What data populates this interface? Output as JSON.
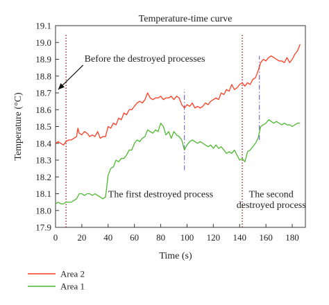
{
  "chart_data": {
    "type": "line",
    "title": "Temperature-time curve",
    "xlabel": "Time (s)",
    "ylabel": "Temperature (°C)",
    "xlim": [
      0,
      190
    ],
    "ylim": [
      17.9,
      19.1
    ],
    "xticks": [
      0,
      20,
      40,
      60,
      80,
      100,
      120,
      140,
      160,
      180
    ],
    "yticks": [
      17.9,
      18.0,
      18.1,
      18.2,
      18.3,
      18.4,
      18.5,
      18.6,
      18.7,
      18.8,
      18.9,
      19.0,
      19.1
    ],
    "xtick_labels": [
      "0",
      "20",
      "40",
      "60",
      "80",
      "100",
      "120",
      "140",
      "160",
      "180"
    ],
    "ytick_labels": [
      "17.9",
      "18.0",
      "18.1",
      "18.2",
      "18.3",
      "18.4",
      "18.5",
      "18.6",
      "18.7",
      "18.8",
      "18.9",
      "19.0",
      "19.1"
    ],
    "grid": false,
    "legend_position": "bottom-left",
    "series": [
      {
        "name": "Area 2",
        "color": "#ff3b1f",
        "x": [
          0,
          2,
          4,
          6,
          8,
          10,
          12,
          14,
          16,
          17,
          18,
          20,
          22,
          24,
          26,
          28,
          30,
          32,
          34,
          36,
          38,
          40,
          42,
          44,
          46,
          48,
          50,
          52,
          54,
          56,
          58,
          60,
          62,
          64,
          66,
          68,
          70,
          72,
          74,
          76,
          78,
          80,
          82,
          84,
          86,
          88,
          90,
          92,
          94,
          96,
          98,
          100,
          102,
          104,
          106,
          108,
          110,
          112,
          114,
          116,
          118,
          120,
          122,
          124,
          126,
          128,
          130,
          132,
          134,
          136,
          138,
          140,
          142,
          144,
          146,
          148,
          150,
          152,
          154,
          156,
          158,
          160,
          162,
          164,
          166,
          168,
          170,
          172,
          174,
          176,
          178,
          180,
          182,
          184,
          186
        ],
        "y": [
          18.4,
          18.41,
          18.4,
          18.39,
          18.41,
          18.42,
          18.42,
          18.43,
          18.44,
          18.49,
          18.46,
          18.45,
          18.47,
          18.46,
          18.44,
          18.45,
          18.44,
          18.47,
          18.43,
          18.44,
          18.44,
          18.5,
          18.49,
          18.52,
          18.51,
          18.55,
          18.54,
          18.58,
          18.57,
          18.6,
          18.6,
          18.62,
          18.64,
          18.65,
          18.64,
          18.66,
          18.7,
          18.67,
          18.66,
          18.67,
          18.67,
          18.68,
          18.66,
          18.67,
          18.67,
          18.68,
          18.66,
          18.68,
          18.67,
          18.63,
          18.61,
          18.63,
          18.62,
          18.64,
          18.61,
          18.62,
          18.61,
          18.62,
          18.64,
          18.63,
          18.65,
          18.66,
          18.67,
          18.66,
          18.7,
          18.69,
          18.72,
          18.71,
          18.75,
          18.72,
          18.73,
          18.75,
          18.76,
          18.74,
          18.76,
          18.75,
          18.78,
          18.79,
          18.83,
          18.88,
          18.9,
          18.89,
          18.91,
          18.92,
          18.91,
          18.9,
          18.89,
          18.89,
          18.88,
          18.91,
          18.88,
          18.9,
          18.93,
          18.95,
          18.99
        ]
      },
      {
        "name": "Area 1",
        "color": "#4db82f",
        "x": [
          0,
          2,
          4,
          6,
          8,
          10,
          12,
          14,
          16,
          18,
          20,
          22,
          24,
          26,
          28,
          30,
          32,
          34,
          36,
          38,
          40,
          42,
          44,
          46,
          48,
          50,
          52,
          54,
          56,
          58,
          60,
          62,
          64,
          66,
          68,
          70,
          72,
          74,
          76,
          78,
          80,
          82,
          84,
          86,
          88,
          90,
          92,
          94,
          96,
          98,
          100,
          102,
          104,
          106,
          108,
          110,
          112,
          114,
          116,
          118,
          120,
          122,
          124,
          126,
          128,
          130,
          132,
          134,
          136,
          138,
          140,
          142,
          144,
          146,
          148,
          150,
          152,
          154,
          156,
          158,
          160,
          162,
          164,
          166,
          168,
          170,
          172,
          174,
          176,
          178,
          180,
          182,
          184,
          186
        ],
        "y": [
          18.04,
          18.05,
          18.04,
          18.04,
          18.05,
          18.05,
          18.05,
          18.06,
          18.07,
          18.1,
          18.1,
          18.09,
          18.1,
          18.1,
          18.09,
          18.1,
          18.09,
          18.08,
          18.07,
          18.08,
          18.21,
          18.25,
          18.26,
          18.3,
          18.29,
          18.31,
          18.31,
          18.33,
          18.36,
          18.36,
          18.4,
          18.42,
          18.41,
          18.43,
          18.44,
          18.48,
          18.47,
          18.46,
          18.48,
          18.47,
          18.52,
          18.5,
          18.45,
          18.47,
          18.43,
          18.47,
          18.45,
          18.44,
          18.42,
          18.36,
          18.39,
          18.41,
          18.42,
          18.41,
          18.4,
          18.41,
          18.4,
          18.39,
          18.38,
          18.39,
          18.37,
          18.39,
          18.37,
          18.38,
          18.36,
          18.34,
          18.35,
          18.34,
          18.36,
          18.33,
          18.3,
          18.31,
          18.29,
          18.35,
          18.36,
          18.38,
          18.4,
          18.43,
          18.5,
          18.51,
          18.52,
          18.54,
          18.53,
          18.52,
          18.53,
          18.52,
          18.51,
          18.52,
          18.51,
          18.51,
          18.5,
          18.51,
          18.52,
          18.52
        ]
      }
    ],
    "markers": [
      {
        "kind": "dotted",
        "color": "#8b2a2a",
        "x": 8,
        "y_from": 17.9,
        "y_to": 19.05
      },
      {
        "kind": "dotted",
        "color": "#8b2a2a",
        "x": 142,
        "y_from": 17.9,
        "y_to": 19.05
      },
      {
        "kind": "dashdot",
        "color": "#6b5bd6",
        "x": 98,
        "y_from": 18.24,
        "y_to": 18.72
      },
      {
        "kind": "dashdot",
        "color": "#6b5bd6",
        "x": 155,
        "y_from": 18.42,
        "y_to": 18.92
      }
    ],
    "annotations": [
      {
        "id": "before",
        "text": "Before the destroyed processes",
        "x": 22,
        "y": 18.885,
        "anchor": "start"
      },
      {
        "id": "first",
        "text": "The first destroyed process",
        "x": 40,
        "y": 18.08,
        "anchor": "start"
      },
      {
        "id": "second-line1",
        "text": "The second",
        "x": 164,
        "y": 18.08,
        "anchor": "middle"
      },
      {
        "id": "second-line2",
        "text": "destroyed process",
        "x": 164,
        "y": 18.015,
        "anchor": "middle"
      }
    ],
    "arrow": {
      "from_x": 21,
      "from_y": 18.865,
      "to_x": 2,
      "to_y": 18.72
    }
  }
}
